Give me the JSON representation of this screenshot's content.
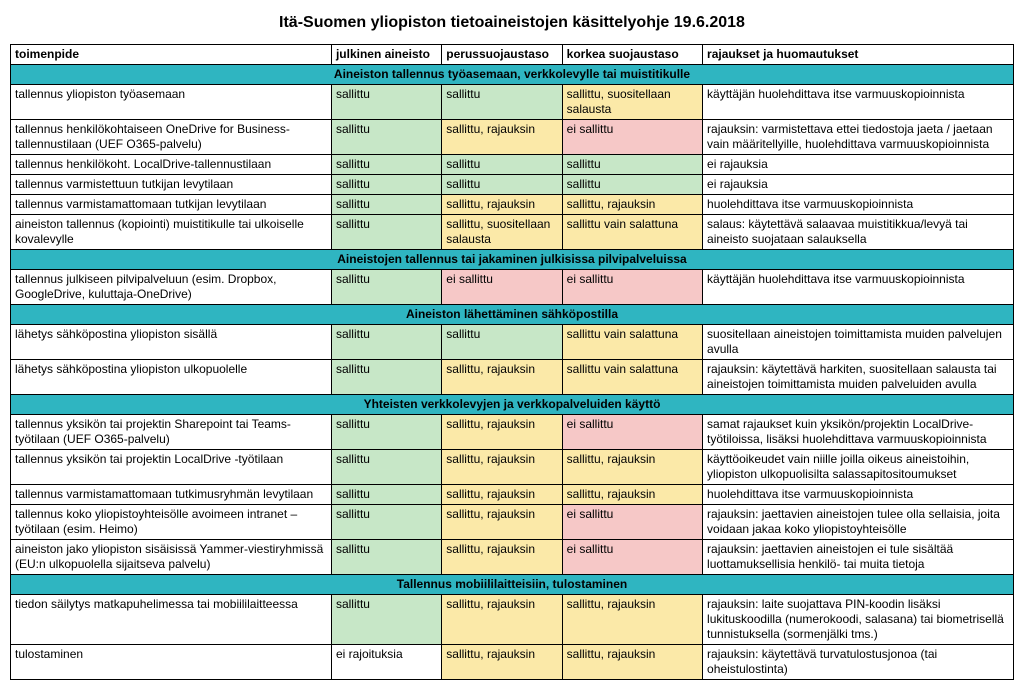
{
  "title": "Itä-Suomen yliopiston tietoaineistojen käsittelyohje 19.6.2018",
  "columns": {
    "action": "toimenpide",
    "public": "julkinen aineisto",
    "basic": "perussuojaustaso",
    "high": "korkea suojaustaso",
    "notes": "rajaukset ja huomautukset"
  },
  "colors": {
    "green": "#c7e7c7",
    "yellow": "#fbe9a8",
    "red": "#f6c8c7",
    "section": "#2fb5c1",
    "white": "#ffffff"
  },
  "sections": [
    {
      "header": "Aineiston tallennus työasemaan, verkkolevylle tai muistitikulle",
      "rows": [
        {
          "action": "tallennus yliopiston työasemaan",
          "public": {
            "text": "sallittu",
            "color": "green"
          },
          "basic": {
            "text": "sallittu",
            "color": "green"
          },
          "high": {
            "text": "sallittu, suositellaan salausta",
            "color": "yellow"
          },
          "notes": {
            "text": "käyttäjän huolehdittava itse varmuuskopioinnista",
            "color": "white"
          }
        },
        {
          "action": "tallennus henkilökohtaiseen OneDrive for Business-tallennustilaan (UEF O365-palvelu)",
          "public": {
            "text": "sallittu",
            "color": "green"
          },
          "basic": {
            "text": "sallittu, rajauksin",
            "color": "yellow"
          },
          "high": {
            "text": "ei sallittu",
            "color": "red"
          },
          "notes": {
            "text": "rajauksin: varmistettava ettei tiedostoja jaeta / jaetaan vain määritellyille,  huolehdittava  varmuuskopioinnista",
            "color": "white"
          }
        },
        {
          "action": "tallennus henkilökoht. LocalDrive-tallennustilaan",
          "public": {
            "text": "sallittu",
            "color": "green"
          },
          "basic": {
            "text": "sallittu",
            "color": "green"
          },
          "high": {
            "text": "sallittu",
            "color": "green"
          },
          "notes": {
            "text": "ei rajauksia",
            "color": "white"
          }
        },
        {
          "action": "tallennus varmistettuun tutkijan levytilaan",
          "public": {
            "text": "sallittu",
            "color": "green"
          },
          "basic": {
            "text": "sallittu",
            "color": "green"
          },
          "high": {
            "text": "sallittu",
            "color": "green"
          },
          "notes": {
            "text": "ei rajauksia",
            "color": "white"
          }
        },
        {
          "action": "tallennus varmistamattomaan tutkijan levytilaan",
          "public": {
            "text": "sallittu",
            "color": "green"
          },
          "basic": {
            "text": "sallittu, rajauksin",
            "color": "yellow"
          },
          "high": {
            "text": "sallittu, rajauksin",
            "color": "yellow"
          },
          "notes": {
            "text": "huolehdittava itse varmuuskopioinnista",
            "color": "white"
          }
        },
        {
          "action": "aineiston tallennus (kopiointi) muistitikulle tai ulkoiselle kovalevylle",
          "public": {
            "text": "sallittu",
            "color": "green"
          },
          "basic": {
            "text": "sallittu, suositellaan salausta",
            "color": "yellow"
          },
          "high": {
            "text": "sallittu vain salattuna",
            "color": "yellow"
          },
          "notes": {
            "text": "salaus: käytettävä salaavaa muistitikkua/levyä tai aineisto suojataan salauksella",
            "color": "white"
          }
        }
      ]
    },
    {
      "header": "Aineistojen tallennus tai jakaminen julkisissa pilvipalveluissa",
      "rows": [
        {
          "action": "tallennus julkiseen pilvipalveluun (esim. Dropbox, GoogleDrive, kuluttaja-OneDrive)",
          "public": {
            "text": "sallittu",
            "color": "green"
          },
          "basic": {
            "text": "ei sallittu",
            "color": "red"
          },
          "high": {
            "text": "ei sallittu",
            "color": "red"
          },
          "notes": {
            "text": "käyttäjän huolehdittava itse varmuuskopioinnista",
            "color": "white"
          }
        }
      ]
    },
    {
      "header": "Aineiston lähettäminen sähköpostilla",
      "rows": [
        {
          "action": "lähetys sähköpostina yliopiston sisällä",
          "public": {
            "text": "sallittu",
            "color": "green"
          },
          "basic": {
            "text": "sallittu",
            "color": "green"
          },
          "high": {
            "text": "sallittu vain salattuna",
            "color": "yellow"
          },
          "notes": {
            "text": "suositellaan aineistojen toimittamista muiden palvelujen avulla",
            "color": "white"
          }
        },
        {
          "action": "lähetys sähköpostina yliopiston ulkopuolelle",
          "public": {
            "text": "sallittu",
            "color": "green"
          },
          "basic": {
            "text": "sallittu, rajauksin",
            "color": "yellow"
          },
          "high": {
            "text": "sallittu vain salattuna",
            "color": "yellow"
          },
          "notes": {
            "text": "rajauksin: käytettävä harkiten, suositellaan salausta tai aineistojen toimittamista muiden palveluiden avulla",
            "color": "white"
          }
        }
      ]
    },
    {
      "header": "Yhteisten verkkolevyjen ja verkkopalveluiden käyttö",
      "rows": [
        {
          "action": "tallennus yksikön tai projektin Sharepoint tai Teams-työtilaan (UEF O365-palvelu)",
          "public": {
            "text": "sallittu",
            "color": "green"
          },
          "basic": {
            "text": "sallittu, rajauksin",
            "color": "yellow"
          },
          "high": {
            "text": "ei sallittu",
            "color": "red"
          },
          "notes": {
            "text": "samat rajaukset kuin yksikön/projektin LocalDrive-työtiloissa, lisäksi huolehdittava varmuuskopioinnista",
            "color": "white"
          }
        },
        {
          "action": "tallennus yksikön tai projektin LocalDrive -työtilaan",
          "public": {
            "text": "sallittu",
            "color": "green"
          },
          "basic": {
            "text": "sallittu, rajauksin",
            "color": "yellow"
          },
          "high": {
            "text": "sallittu, rajauksin",
            "color": "yellow"
          },
          "notes": {
            "text": "käyttöoikeudet vain niille joilla oikeus aineistoihin, yliopiston ulkopuolisilta salassapitositoumukset",
            "color": "white"
          }
        },
        {
          "action": "tallennus varmistamattomaan tutkimusryhmän levytilaan",
          "public": {
            "text": "sallittu",
            "color": "green"
          },
          "basic": {
            "text": "sallittu, rajauksin",
            "color": "yellow"
          },
          "high": {
            "text": "sallittu, rajauksin",
            "color": "yellow"
          },
          "notes": {
            "text": "huolehdittava itse varmuuskopioinnista",
            "color": "white"
          }
        },
        {
          "action": "tallennus koko yliopistoyhteisölle avoimeen intranet –työtilaan (esim. Heimo)",
          "public": {
            "text": "sallittu",
            "color": "green"
          },
          "basic": {
            "text": "sallittu, rajauksin",
            "color": "yellow"
          },
          "high": {
            "text": "ei sallittu",
            "color": "red"
          },
          "notes": {
            "text": "rajauksin: jaettavien aineistojen tulee olla sellaisia, joita voidaan jakaa koko yliopistoyhteisölle",
            "color": "white"
          }
        },
        {
          "action": "aineiston jako yliopiston sisäisissä Yammer-viestiryhmissä (EU:n ulkopuolella sijaitseva palvelu)",
          "public": {
            "text": "sallittu",
            "color": "green"
          },
          "basic": {
            "text": "sallittu, rajauksin",
            "color": "yellow"
          },
          "high": {
            "text": "ei sallittu",
            "color": "red"
          },
          "notes": {
            "text": "rajauksin: jaettavien aineistojen ei tule sisältää luottamuksellisia henkilö- tai muita tietoja",
            "color": "white"
          }
        }
      ]
    },
    {
      "header": "Tallennus mobiililaitteisiin, tulostaminen",
      "rows": [
        {
          "action": "tiedon säilytys matkapuhelimessa tai mobiililaitteessa",
          "public": {
            "text": "sallittu",
            "color": "green"
          },
          "basic": {
            "text": "sallittu, rajauksin",
            "color": "yellow"
          },
          "high": {
            "text": "sallittu, rajauksin",
            "color": "yellow"
          },
          "notes": {
            "text": "rajauksin: laite suojattava PIN-koodin lisäksi lukituskoodilla (numerokoodi, salasana) tai biometrisellä tunnistuksella (sormenjälki tms.)",
            "color": "white"
          }
        },
        {
          "action": "tulostaminen",
          "public": {
            "text": "ei rajoituksia",
            "color": "white"
          },
          "basic": {
            "text": "sallittu, rajauksin",
            "color": "yellow"
          },
          "high": {
            "text": "sallittu, rajauksin",
            "color": "yellow"
          },
          "notes": {
            "text": "rajauksin: käytettävä turvatulostusjonoa (tai oheistulostinta)",
            "color": "white"
          }
        }
      ]
    }
  ]
}
